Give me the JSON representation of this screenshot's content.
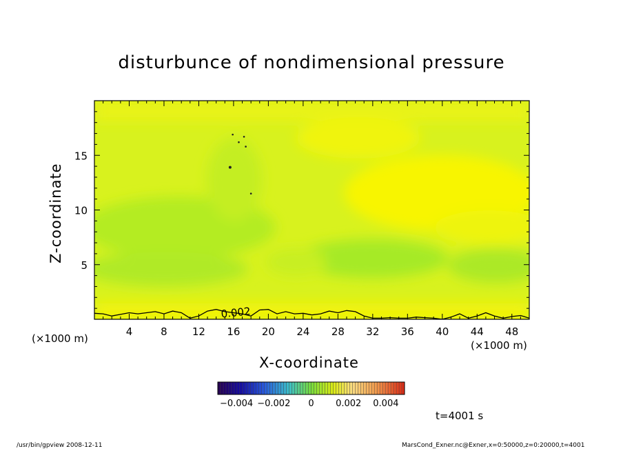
{
  "chart_data": {
    "type": "heatmap",
    "title": "disturbunce of nondimensional pressure",
    "xlabel": "X-coordinate",
    "ylabel": "Z-coordinate",
    "x_unit_left": "(×1000 m)",
    "x_unit_right": "(×1000 m)",
    "xlim": [
      0,
      50
    ],
    "ylim": [
      0,
      20
    ],
    "xticks": [
      4,
      8,
      12,
      16,
      20,
      24,
      28,
      32,
      36,
      40,
      44,
      48
    ],
    "yticks": [
      5,
      10,
      15
    ],
    "contour": {
      "level": 0.002,
      "label": "0.002",
      "x": [
        0,
        1,
        2,
        3,
        4,
        5,
        6,
        7,
        8,
        9,
        10,
        11,
        12,
        13,
        14,
        15,
        16,
        17,
        18,
        19,
        20,
        21,
        22,
        23,
        24,
        25,
        26,
        27,
        28,
        29,
        30,
        31,
        32,
        33,
        34,
        35,
        36,
        37,
        38,
        39,
        40,
        41,
        42,
        43,
        44,
        45,
        46,
        47,
        48,
        49,
        50
      ],
      "y": [
        0.55,
        0.5,
        0.3,
        0.45,
        0.6,
        0.5,
        0.6,
        0.7,
        0.5,
        0.75,
        0.6,
        0.1,
        0.3,
        0.75,
        0.9,
        0.7,
        0.6,
        0.5,
        0.3,
        0.85,
        0.9,
        0.5,
        0.7,
        0.5,
        0.55,
        0.4,
        0.5,
        0.75,
        0.6,
        0.8,
        0.7,
        0.3,
        0.1,
        0.1,
        0.15,
        0.1,
        0.1,
        0.2,
        0.15,
        0.1,
        0.0,
        0.2,
        0.5,
        0.1,
        0.3,
        0.6,
        0.3,
        0.1,
        0.25,
        0.35,
        0.1
      ]
    },
    "colorbar": {
      "range": [
        -0.005,
        0.005
      ],
      "ticks": [
        -0.004,
        -0.002,
        0,
        0.002,
        0.004
      ],
      "tick_labels": [
        "−0.004",
        "−0.002",
        "0",
        "0.002",
        "0.004"
      ]
    },
    "colors": {
      "background_field": "#d8f21e",
      "high": "#f8f500",
      "low": "#9ce828"
    }
  },
  "annotations": {
    "time": "t=4001 s",
    "footer_left": "/usr/bin/gpview   2008-12-11",
    "footer_right": "MarsCond_Exner.nc@Exner,x=0:50000,z=0:20000,t=4001"
  }
}
